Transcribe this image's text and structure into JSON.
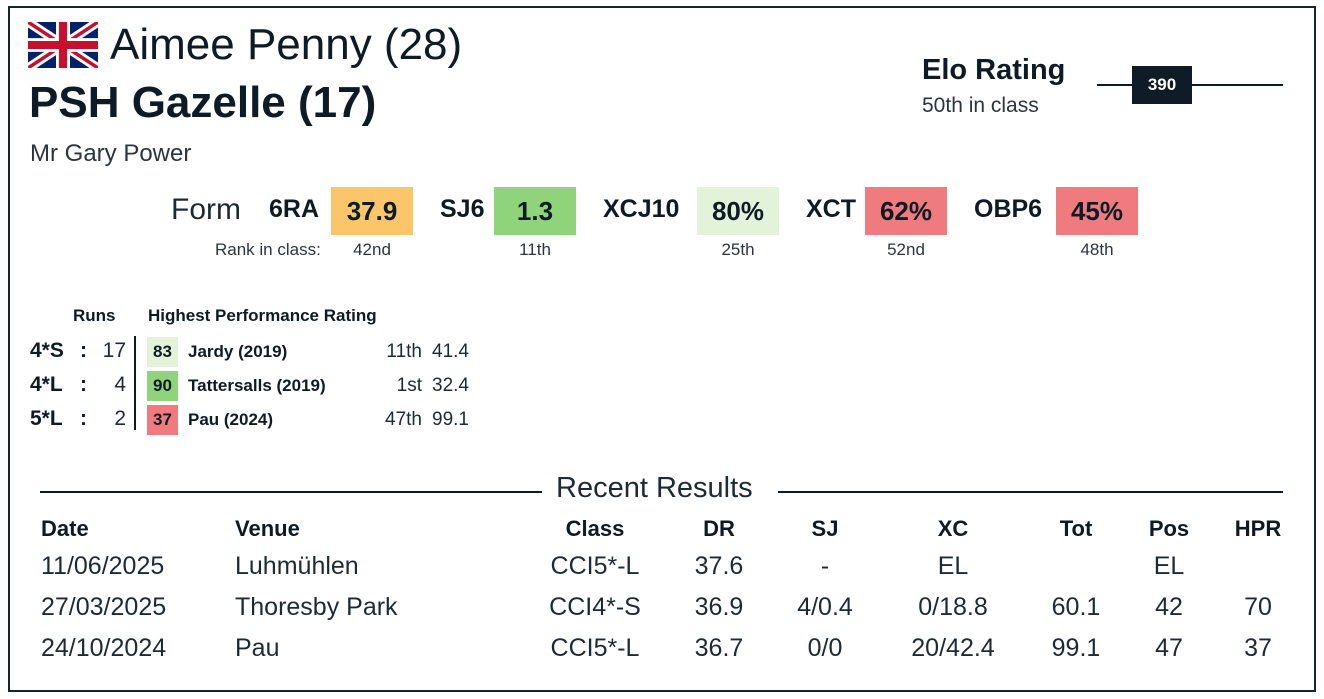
{
  "rider": {
    "name_age": "Aimee Penny (28)",
    "flag": "union-jack-flag"
  },
  "horse": {
    "name_age": "PSH Gazelle (17)"
  },
  "owner": "Mr Gary Power",
  "elo": {
    "title": "Elo Rating",
    "rank": "50th in class",
    "value": "390"
  },
  "form": {
    "label": "Form",
    "rank_label": "Rank in class:",
    "items": [
      {
        "key": "6RA",
        "value": "37.9",
        "rank": "42nd",
        "color": "#fbc66a"
      },
      {
        "key": "SJ6",
        "value": "1.3",
        "rank": "11th",
        "color": "#8fd37a"
      },
      {
        "key": "XCJ10",
        "value": "80%",
        "rank": "25th",
        "color": "#e3f3d9"
      },
      {
        "key": "XCT",
        "value": "62%",
        "rank": "52nd",
        "color": "#ef7b7e"
      },
      {
        "key": "OBP6",
        "value": "45%",
        "rank": "48th",
        "color": "#ef7b7e"
      }
    ]
  },
  "hpr": {
    "runs_header": "Runs",
    "header": "Highest Performance Rating",
    "rows": [
      {
        "level": "4*S",
        "runs": "17",
        "score": "83",
        "event": "Jardy (2019)",
        "pos": "11th",
        "pen": "41.4",
        "color": "#e3f3d9"
      },
      {
        "level": "4*L",
        "runs": "4",
        "score": "90",
        "event": "Tattersalls (2019)",
        "pos": "1st",
        "pen": "32.4",
        "color": "#8fd37a"
      },
      {
        "level": "5*L",
        "runs": "2",
        "score": "37",
        "event": "Pau (2024)",
        "pos": "47th",
        "pen": "99.1",
        "color": "#ef7b7e"
      }
    ]
  },
  "recent": {
    "title": "Recent Results",
    "headers": [
      "Date",
      "Venue",
      "Class",
      "DR",
      "SJ",
      "XC",
      "Tot",
      "Pos",
      "HPR"
    ],
    "rows": [
      [
        "11/06/2025",
        "Luhmühlen",
        "CCI5*-L",
        "37.6",
        "-",
        "EL",
        "",
        "EL",
        ""
      ],
      [
        "27/03/2025",
        "Thoresby Park",
        "CCI4*-S",
        "36.9",
        "4/0.4",
        "0/18.8",
        "60.1",
        "42",
        "70"
      ],
      [
        "24/10/2024",
        "Pau",
        "CCI5*-L",
        "36.7",
        "0/0",
        "20/42.4",
        "99.1",
        "47",
        "37"
      ]
    ]
  }
}
